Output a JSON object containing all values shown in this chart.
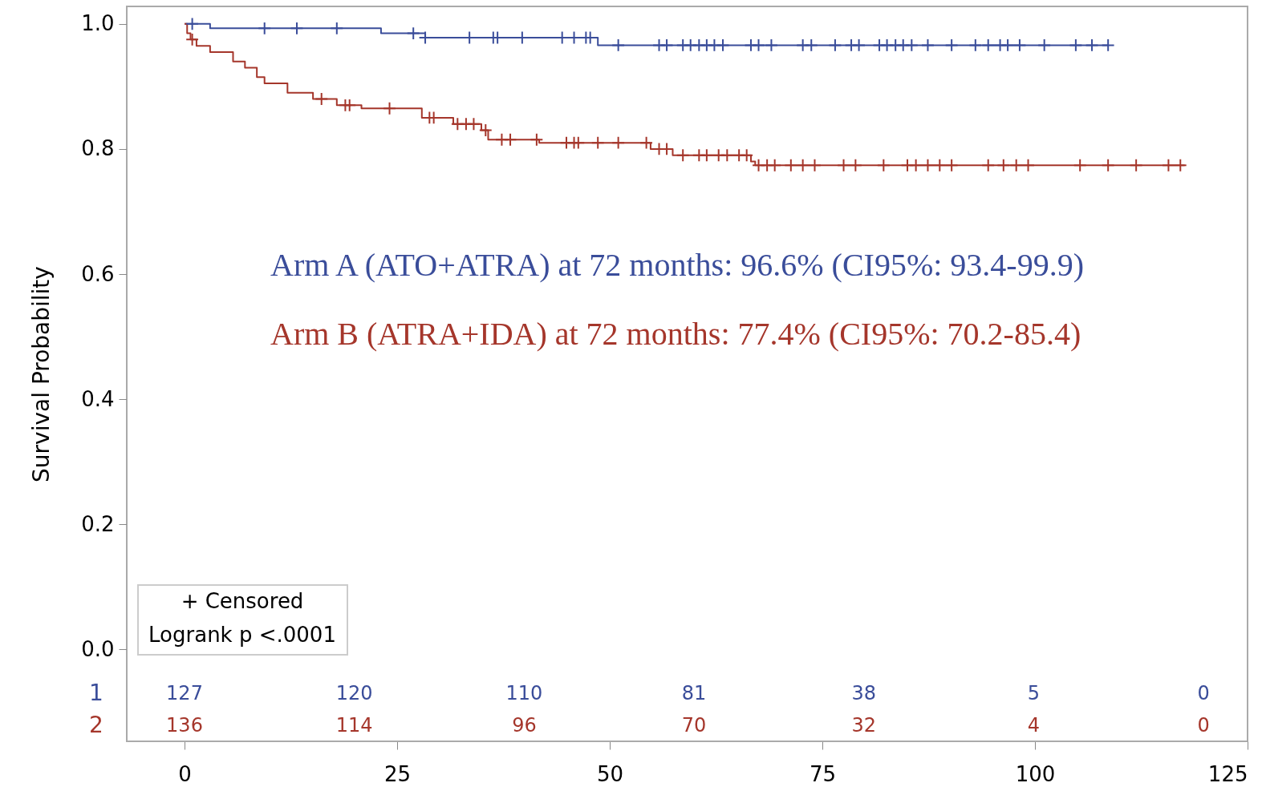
{
  "chart_data": {
    "type": "step",
    "ylabel": "Survival Probability",
    "xlim": [
      -6.8,
      125
    ],
    "ylim": [
      -0.147,
      1.028
    ],
    "xticks": [
      0,
      25,
      50,
      75,
      100,
      125
    ],
    "yticks": [
      {
        "value": 0,
        "label": "0.0"
      },
      {
        "value": 0.2,
        "label": "0.2"
      },
      {
        "value": 0.4,
        "label": "0.4"
      },
      {
        "value": 0.6,
        "label": "0.6"
      },
      {
        "value": 0.8,
        "label": "0.8"
      },
      {
        "value": 1,
        "label": "1.0"
      }
    ],
    "grid": false,
    "series": [
      {
        "name": "1",
        "color": "#3a4d9a",
        "marker": "none",
        "x": [
          0,
          3.0,
          23.1,
          28.3,
          48.6,
          108.6
        ],
        "values": [
          1.0,
          0.993,
          0.985,
          0.978,
          0.966,
          0.966
        ]
      },
      {
        "name": "2",
        "color": "#a5362b",
        "marker": "none",
        "x": [
          0,
          0.3,
          0.7,
          1.4,
          3.0,
          5.7,
          7.1,
          8.5,
          9.4,
          12.1,
          15.1,
          17.9,
          20.8,
          27.9,
          31.6,
          34.9,
          35.7,
          41.7,
          54.8,
          57.4,
          66.6,
          67.1,
          117.6
        ],
        "values": [
          1.0,
          0.985,
          0.975,
          0.965,
          0.955,
          0.94,
          0.93,
          0.915,
          0.905,
          0.89,
          0.88,
          0.87,
          0.865,
          0.85,
          0.84,
          0.83,
          0.815,
          0.81,
          0.8,
          0.79,
          0.78,
          0.774,
          0.774
        ]
      },
      {
        "color": "#3a4d9a",
        "type": "scatter",
        "marker": "cross",
        "x": [
          0.9,
          9.4,
          13.2,
          17.9,
          26.9,
          28.3,
          33.5,
          36.3,
          36.8,
          39.7,
          44.4,
          45.8,
          47.2,
          47.7,
          51.0,
          55.8,
          56.7,
          58.6,
          59.5,
          60.5,
          61.4,
          62.3,
          63.3,
          66.6,
          67.5,
          69.0,
          72.7,
          73.7,
          76.5,
          78.4,
          79.3,
          81.7,
          82.6,
          83.6,
          84.5,
          85.5,
          87.4,
          90.2,
          93.0,
          94.5,
          95.9,
          96.8,
          98.2,
          101.1,
          104.8,
          106.7,
          108.6
        ],
        "values": [
          1.0,
          0.993,
          0.993,
          0.993,
          0.985,
          0.978,
          0.978,
          0.978,
          0.978,
          0.978,
          0.978,
          0.978,
          0.978,
          0.978,
          0.966,
          0.966,
          0.966,
          0.966,
          0.966,
          0.966,
          0.966,
          0.966,
          0.966,
          0.966,
          0.966,
          0.966,
          0.966,
          0.966,
          0.966,
          0.966,
          0.966,
          0.966,
          0.966,
          0.966,
          0.966,
          0.966,
          0.966,
          0.966,
          0.966,
          0.966,
          0.966,
          0.966,
          0.966,
          0.966,
          0.966,
          0.966,
          0.966
        ]
      },
      {
        "color": "#a5362b",
        "type": "scatter",
        "marker": "cross",
        "x": [
          0.9,
          16.1,
          18.9,
          19.4,
          24.1,
          28.8,
          29.3,
          32.1,
          33.1,
          34.0,
          35.4,
          37.3,
          38.3,
          41.4,
          44.9,
          45.8,
          46.3,
          48.6,
          51.0,
          54.3,
          55.8,
          56.7,
          58.6,
          60.5,
          61.4,
          62.8,
          63.8,
          65.2,
          66.1,
          67.5,
          68.5,
          69.4,
          71.3,
          72.7,
          74.1,
          77.5,
          78.9,
          82.2,
          85.0,
          86.0,
          87.4,
          88.8,
          90.2,
          94.5,
          96.3,
          97.8,
          99.2,
          105.3,
          108.6,
          111.9,
          115.7,
          117.1
        ],
        "values": [
          0.975,
          0.88,
          0.87,
          0.87,
          0.865,
          0.85,
          0.85,
          0.84,
          0.84,
          0.84,
          0.83,
          0.815,
          0.815,
          0.815,
          0.81,
          0.81,
          0.81,
          0.81,
          0.81,
          0.81,
          0.8,
          0.8,
          0.79,
          0.79,
          0.79,
          0.79,
          0.79,
          0.79,
          0.79,
          0.774,
          0.774,
          0.774,
          0.774,
          0.774,
          0.774,
          0.774,
          0.774,
          0.774,
          0.774,
          0.774,
          0.774,
          0.774,
          0.774,
          0.774,
          0.774,
          0.774,
          0.774,
          0.774,
          0.774,
          0.774,
          0.774,
          0.774
        ]
      }
    ],
    "annotations": [
      "Arm A (ATO+ATRA) at 72 months: 96.6% (CI95%: 93.4-99.9)",
      "Arm B (ATRA+IDA) at 72 months: 77.4% (CI95%: 70.2-85.4)",
      "+ Censored",
      "Logrank p <.0001",
      "127",
      "120",
      "110",
      "81",
      "38",
      "5",
      "0",
      "136",
      "114",
      "96",
      "70",
      "32",
      "4",
      "0"
    ]
  }
}
